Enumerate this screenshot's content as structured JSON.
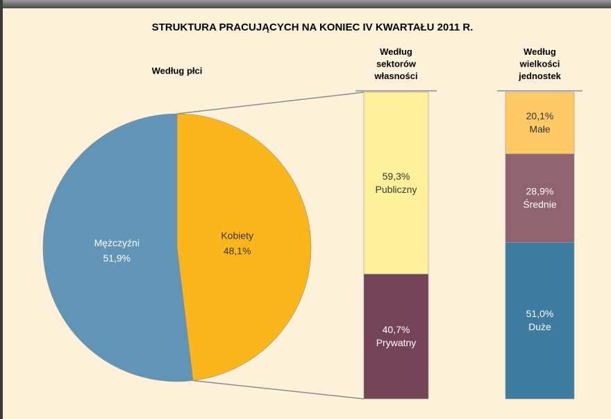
{
  "title": "STRUKTURA PRACUJĄCYCH NA KONIEC IV KWARTAŁU 2011 R.",
  "chart_data": [
    {
      "type": "pie",
      "title": "Według płci",
      "categories": [
        "Kobiety",
        "Mężczyźni"
      ],
      "values": [
        48.1,
        51.9
      ],
      "value_labels": [
        "48,1%",
        "51,9%"
      ],
      "colors": [
        "#fbb61a",
        "#6195b8"
      ]
    },
    {
      "type": "bar",
      "title": "Według sektorów własności",
      "series": [
        {
          "name": "Publiczny",
          "color": "#fff09a",
          "values": [
            59.3
          ],
          "value_labels": [
            "59,3%"
          ]
        },
        {
          "name": "Prywatny",
          "color": "#744456",
          "values": [
            40.7
          ],
          "value_labels": [
            "40,7%"
          ]
        }
      ]
    },
    {
      "type": "bar",
      "title": "Według wielkości jednostek",
      "series": [
        {
          "name": "Małe",
          "color": "#ffc966",
          "values": [
            20.1
          ],
          "value_labels": [
            "20,1%"
          ]
        },
        {
          "name": "Średnie",
          "color": "#8f6370",
          "values": [
            28.9
          ],
          "value_labels": [
            "28,9%"
          ]
        },
        {
          "name": "Duże",
          "color": "#3d7ba0",
          "values": [
            51.0
          ],
          "value_labels": [
            "51,0%"
          ]
        }
      ]
    }
  ]
}
